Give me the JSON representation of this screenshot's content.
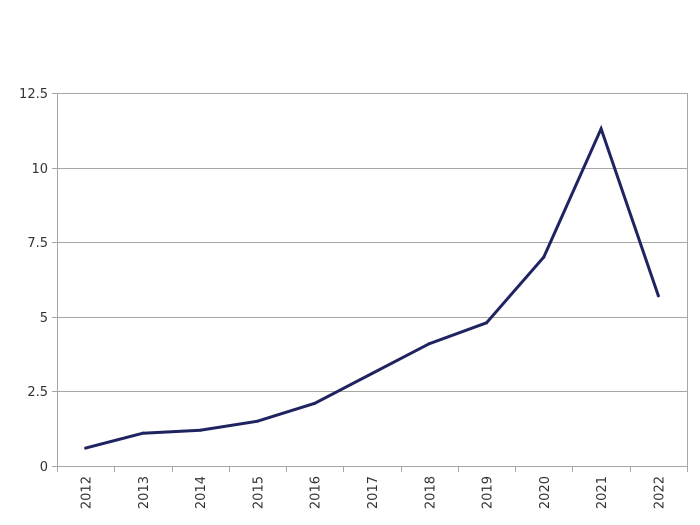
{
  "chart_data": {
    "type": "line",
    "x": [
      "2012",
      "2013",
      "2014",
      "2015",
      "2016",
      "2017",
      "2018",
      "2019",
      "2020",
      "2021",
      "2022"
    ],
    "series": [
      {
        "values": [
          0.6,
          1.1,
          1.2,
          1.5,
          2.1,
          3.1,
          4.1,
          4.8,
          7.0,
          11.3,
          5.7
        ]
      }
    ],
    "title": "",
    "xlabel": "",
    "ylabel": "",
    "ylim": [
      0,
      12.5
    ],
    "yticks": [
      "0",
      "2.5",
      "5",
      "7.5",
      "10",
      "12.5"
    ],
    "grid": "horizontal",
    "legend": "none",
    "line_color": "#1f2360",
    "grid_color": "#a6a6a6",
    "axis_color": "#a6a6a6"
  }
}
